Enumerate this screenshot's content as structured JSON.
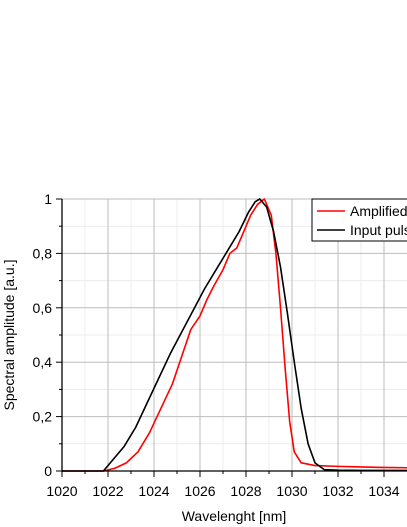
{
  "chart_data": {
    "type": "line",
    "xlabel": "Wavelenght [nm]",
    "ylabel": "Spectral amplitude [a.u.]",
    "xlim": [
      1020,
      1035
    ],
    "ylim": [
      0,
      1
    ],
    "xticks": [
      {
        "value": 1020,
        "label": "1020"
      },
      {
        "value": 1022,
        "label": "1022"
      },
      {
        "value": 1024,
        "label": "1024"
      },
      {
        "value": 1026,
        "label": "1026"
      },
      {
        "value": 1028,
        "label": "1028"
      },
      {
        "value": 1030,
        "label": "1030"
      },
      {
        "value": 1032,
        "label": "1032"
      },
      {
        "value": 1034,
        "label": "1034"
      }
    ],
    "yticks": [
      {
        "value": 0,
        "label": "0"
      },
      {
        "value": 0.2,
        "label": "0,2"
      },
      {
        "value": 0.4,
        "label": "0,4"
      },
      {
        "value": 0.6,
        "label": "0,6"
      },
      {
        "value": 0.8,
        "label": "0,8"
      },
      {
        "value": 1,
        "label": "1"
      }
    ],
    "grid": true,
    "legend_position": "top-right",
    "series": [
      {
        "name": "Amplified",
        "color": "#ff0000",
        "points": [
          [
            1020,
            0.0
          ],
          [
            1021,
            0.0
          ],
          [
            1021.8,
            0.0
          ],
          [
            1022.3,
            0.01
          ],
          [
            1022.8,
            0.03
          ],
          [
            1023.3,
            0.07
          ],
          [
            1023.8,
            0.14
          ],
          [
            1024.3,
            0.23
          ],
          [
            1024.8,
            0.32
          ],
          [
            1025.2,
            0.42
          ],
          [
            1025.6,
            0.52
          ],
          [
            1026.0,
            0.57
          ],
          [
            1026.3,
            0.63
          ],
          [
            1026.6,
            0.68
          ],
          [
            1027.0,
            0.74
          ],
          [
            1027.3,
            0.8
          ],
          [
            1027.6,
            0.82
          ],
          [
            1027.9,
            0.88
          ],
          [
            1028.2,
            0.94
          ],
          [
            1028.5,
            0.98
          ],
          [
            1028.8,
            1.0
          ],
          [
            1029.1,
            0.94
          ],
          [
            1029.3,
            0.8
          ],
          [
            1029.5,
            0.6
          ],
          [
            1029.7,
            0.38
          ],
          [
            1029.9,
            0.18
          ],
          [
            1030.1,
            0.07
          ],
          [
            1030.4,
            0.03
          ],
          [
            1031.0,
            0.02
          ],
          [
            1032.0,
            0.017
          ],
          [
            1033.0,
            0.015
          ],
          [
            1034.0,
            0.013
          ],
          [
            1035.0,
            0.012
          ]
        ]
      },
      {
        "name": "Input pulse",
        "color": "#000000",
        "points": [
          [
            1020,
            0.0
          ],
          [
            1021,
            0.0
          ],
          [
            1021.8,
            0.0
          ],
          [
            1022.2,
            0.04
          ],
          [
            1022.7,
            0.09
          ],
          [
            1023.2,
            0.16
          ],
          [
            1023.7,
            0.25
          ],
          [
            1024.2,
            0.34
          ],
          [
            1024.7,
            0.43
          ],
          [
            1025.2,
            0.51
          ],
          [
            1025.7,
            0.59
          ],
          [
            1026.2,
            0.67
          ],
          [
            1026.7,
            0.74
          ],
          [
            1027.2,
            0.81
          ],
          [
            1027.7,
            0.88
          ],
          [
            1028.1,
            0.95
          ],
          [
            1028.4,
            0.99
          ],
          [
            1028.6,
            1.0
          ],
          [
            1028.9,
            0.97
          ],
          [
            1029.2,
            0.88
          ],
          [
            1029.5,
            0.75
          ],
          [
            1029.8,
            0.58
          ],
          [
            1030.1,
            0.4
          ],
          [
            1030.4,
            0.23
          ],
          [
            1030.7,
            0.1
          ],
          [
            1031.0,
            0.03
          ],
          [
            1031.4,
            0.005
          ],
          [
            1032.0,
            0.003
          ],
          [
            1033.0,
            0.002
          ],
          [
            1034.0,
            0.002
          ],
          [
            1035.0,
            0.002
          ]
        ]
      }
    ]
  }
}
